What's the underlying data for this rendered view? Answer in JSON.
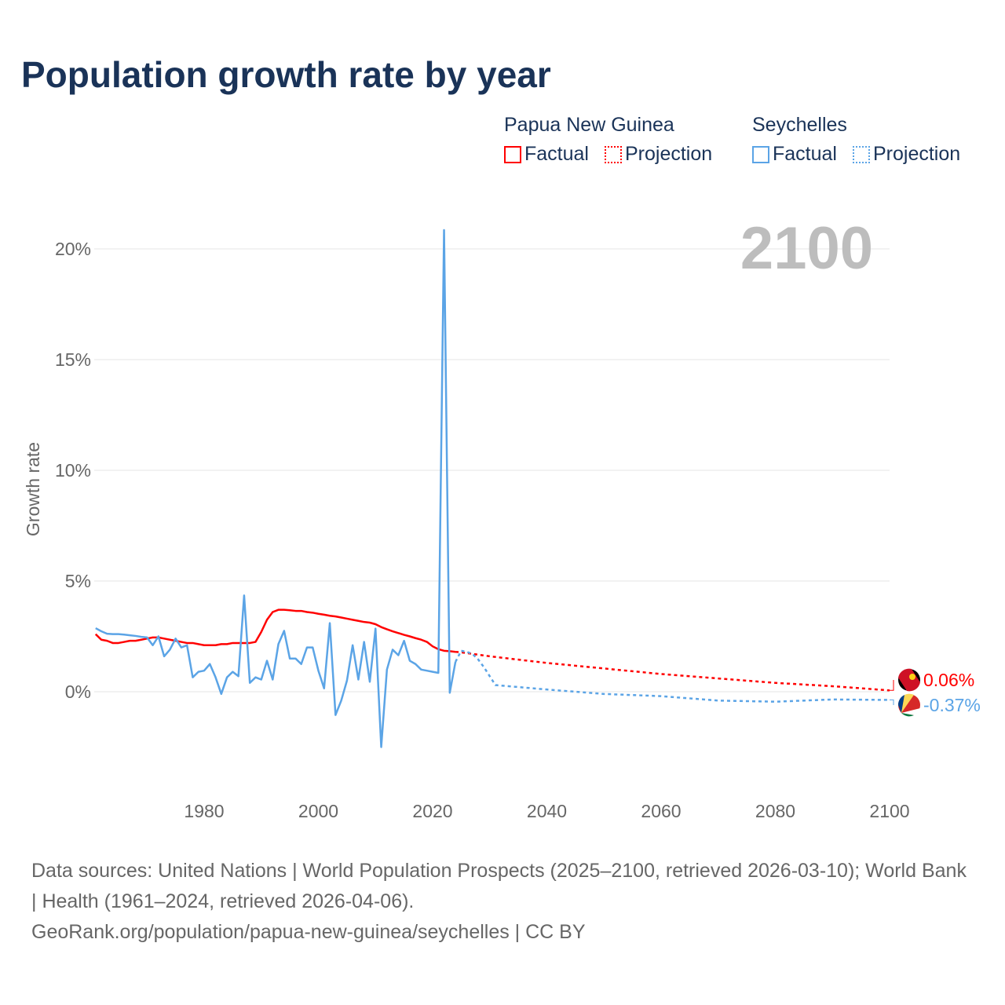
{
  "chart_data": {
    "type": "line",
    "title": "Population growth rate by year",
    "xlabel": "",
    "ylabel": "Growth rate",
    "xlim": [
      1961,
      2100
    ],
    "ylim": [
      -3,
      21
    ],
    "x_ticks": [
      "1980",
      "2000",
      "2020",
      "2040",
      "2060",
      "2080",
      "2100"
    ],
    "x_tick_values": [
      1980,
      2000,
      2020,
      2040,
      2060,
      2080,
      2100
    ],
    "y_ticks": [
      "0%",
      "5%",
      "10%",
      "15%",
      "20%"
    ],
    "y_tick_values": [
      0,
      5,
      10,
      15,
      20
    ],
    "grid": true,
    "year_overlay": "2100",
    "legend": {
      "placement": "top-right",
      "groups": [
        {
          "name": "Papua New Guinea",
          "factual": "Factual",
          "projection": "Projection"
        },
        {
          "name": "Seychelles",
          "factual": "Factual",
          "projection": "Projection"
        }
      ]
    },
    "series": [
      {
        "name": "Papua New Guinea",
        "color": "#ff0000",
        "end_label": "0.06%",
        "factual_start": 1961,
        "factual": [
          2.6,
          2.35,
          2.3,
          2.2,
          2.2,
          2.25,
          2.3,
          2.3,
          2.35,
          2.4,
          2.45,
          2.45,
          2.4,
          2.35,
          2.3,
          2.25,
          2.2,
          2.2,
          2.15,
          2.1,
          2.1,
          2.1,
          2.15,
          2.15,
          2.2,
          2.2,
          2.2,
          2.2,
          2.25,
          2.7,
          3.25,
          3.6,
          3.7,
          3.7,
          3.68,
          3.65,
          3.65,
          3.6,
          3.57,
          3.52,
          3.48,
          3.43,
          3.4,
          3.35,
          3.3,
          3.25,
          3.2,
          3.15,
          3.12,
          3.05,
          2.92,
          2.82,
          2.73,
          2.65,
          2.57,
          2.5,
          2.42,
          2.35,
          2.25,
          2.05,
          1.92,
          1.85,
          1.83,
          1.8
        ],
        "projection": [
          [
            2024,
            1.8
          ],
          [
            2025,
            1.78
          ],
          [
            2030,
            1.6
          ],
          [
            2040,
            1.3
          ],
          [
            2050,
            1.05
          ],
          [
            2060,
            0.8
          ],
          [
            2070,
            0.6
          ],
          [
            2080,
            0.4
          ],
          [
            2090,
            0.25
          ],
          [
            2100,
            0.06
          ]
        ]
      },
      {
        "name": "Seychelles",
        "color": "#5ba4e6",
        "end_label": "-0.37%",
        "factual_start": 1961,
        "factual": [
          2.87,
          2.73,
          2.62,
          2.6,
          2.6,
          2.58,
          2.55,
          2.52,
          2.48,
          2.45,
          2.1,
          2.5,
          1.6,
          1.9,
          2.4,
          2.0,
          2.1,
          0.65,
          0.9,
          0.95,
          1.25,
          0.65,
          -0.1,
          0.65,
          0.9,
          0.7,
          4.35,
          0.4,
          0.65,
          0.55,
          1.4,
          0.55,
          2.15,
          2.75,
          1.5,
          1.5,
          1.25,
          2.0,
          2.0,
          0.95,
          0.15,
          3.1,
          -1.05,
          -0.4,
          0.5,
          2.1,
          0.55,
          2.25,
          0.45,
          2.85,
          -2.5,
          1.0,
          1.9,
          1.65,
          2.3,
          1.4,
          1.25,
          1.0,
          0.95,
          0.9,
          0.85,
          20.85,
          -0.05,
          1.35
        ],
        "projection": [
          [
            2024,
            1.35
          ],
          [
            2025,
            1.85
          ],
          [
            2026,
            1.8
          ],
          [
            2027,
            1.7
          ],
          [
            2028,
            1.45
          ],
          [
            2029,
            1.1
          ],
          [
            2030,
            0.7
          ],
          [
            2031,
            0.3
          ],
          [
            2040,
            0.1
          ],
          [
            2050,
            -0.1
          ],
          [
            2060,
            -0.2
          ],
          [
            2070,
            -0.4
          ],
          [
            2080,
            -0.45
          ],
          [
            2090,
            -0.35
          ],
          [
            2100,
            -0.37
          ]
        ]
      }
    ]
  },
  "footer": {
    "sources": "Data sources: United Nations | World Population Prospects (2025–2100, retrieved 2026-03-10); World Bank | Health (1961–2024, retrieved 2026-04-06).",
    "url": "GeoRank.org/population/papua-new-guinea/seychelles | CC BY"
  }
}
